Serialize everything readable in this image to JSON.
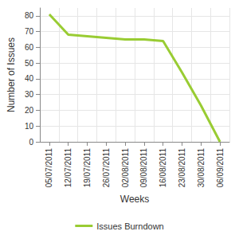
{
  "chart_data": {
    "type": "line",
    "categories": [
      "05/07/2011",
      "12/07/2011",
      "19/07/2011",
      "26/07/2011",
      "02/08/2011",
      "09/08/2011",
      "16/08/2011",
      "23/08/2011",
      "30/08/2011",
      "06/09/2011"
    ],
    "series": [
      {
        "name": "Issues Burndown",
        "color": "#99cc33",
        "values": [
          81,
          68,
          67,
          66,
          65,
          65,
          64,
          44,
          23,
          0
        ]
      }
    ],
    "x_label": "Weeks",
    "y_label": "Number of Issues",
    "ylim": [
      0,
      85
    ],
    "yticks": [
      0,
      10,
      20,
      30,
      40,
      50,
      60,
      70,
      80
    ],
    "grid": true,
    "legend": "bottom"
  }
}
